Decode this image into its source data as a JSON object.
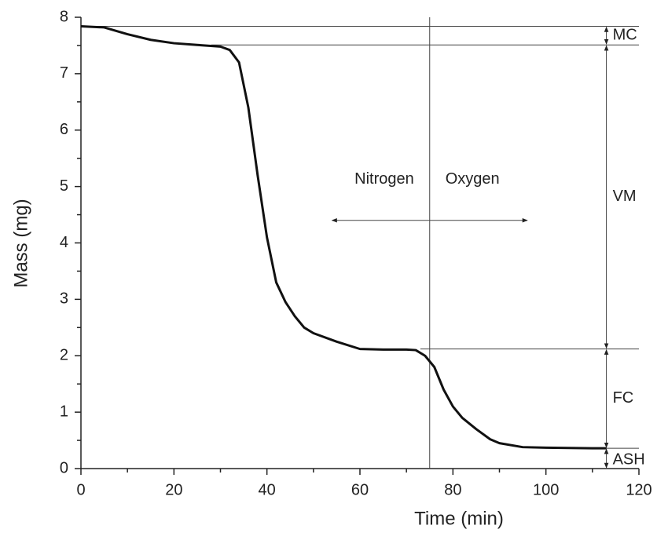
{
  "chart_data": {
    "type": "line",
    "xlabel": "Time (min)",
    "ylabel": "Mass (mg)",
    "x": [
      0,
      5,
      10,
      15,
      20,
      25,
      30,
      32,
      34,
      36,
      38,
      40,
      42,
      44,
      46,
      48,
      50,
      55,
      60,
      65,
      70,
      72,
      74,
      76,
      78,
      80,
      82,
      85,
      88,
      90,
      95,
      100,
      110,
      113
    ],
    "values": [
      7.84,
      7.82,
      7.7,
      7.6,
      7.54,
      7.51,
      7.48,
      7.42,
      7.2,
      6.4,
      5.2,
      4.1,
      3.3,
      2.95,
      2.7,
      2.5,
      2.4,
      2.25,
      2.12,
      2.11,
      2.11,
      2.1,
      2.0,
      1.8,
      1.4,
      1.1,
      0.9,
      0.7,
      0.52,
      0.45,
      0.38,
      0.37,
      0.36,
      0.36
    ],
    "color": "#111111",
    "xlim": [
      0,
      120
    ],
    "xticks": [
      0,
      20,
      40,
      60,
      80,
      100,
      120
    ],
    "ylim": [
      0,
      8
    ],
    "yticks": [
      0,
      1,
      2,
      3,
      4,
      5,
      6,
      7,
      8
    ],
    "levels": [
      7.84,
      7.51,
      2.12,
      0.36,
      0
    ],
    "level_line_start": [
      0,
      28,
      73,
      113
    ],
    "fraction_labels": [
      "MC",
      "VM",
      "FC",
      "ASH"
    ],
    "bracket_x": 113,
    "switch_x": 75,
    "atmosphere_labels": [
      "Nitrogen",
      "Oxygen"
    ],
    "atmosphere_arrow_x": [
      54,
      96
    ],
    "atmosphere_arrow_y": 4.4
  }
}
